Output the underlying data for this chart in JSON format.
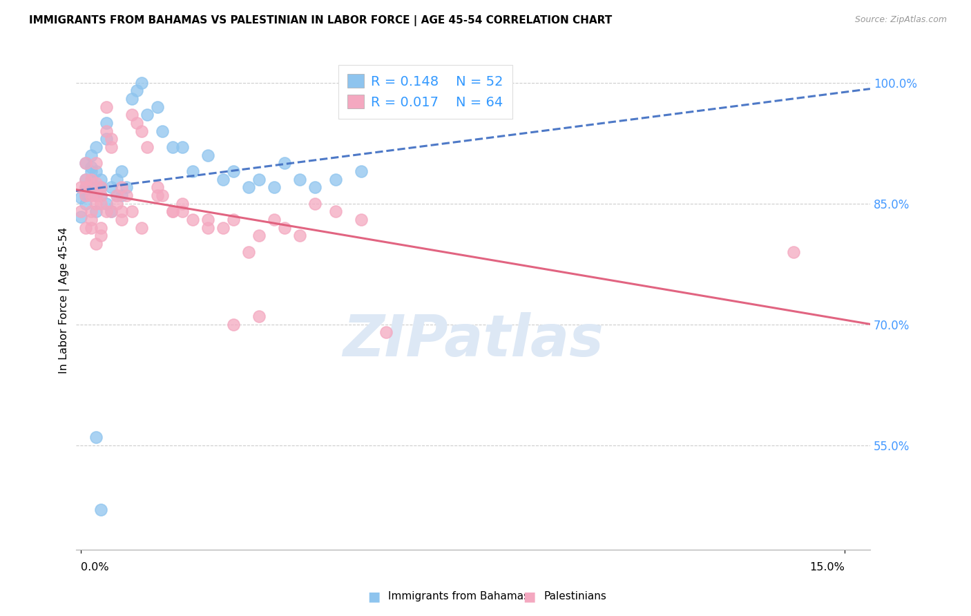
{
  "title": "IMMIGRANTS FROM BAHAMAS VS PALESTINIAN IN LABOR FORCE | AGE 45-54 CORRELATION CHART",
  "source": "Source: ZipAtlas.com",
  "ylabel": "In Labor Force | Age 45-54",
  "ylim": [
    0.42,
    1.04
  ],
  "xlim": [
    -0.001,
    0.155
  ],
  "yticks": [
    0.55,
    0.7,
    0.85,
    1.0
  ],
  "ytick_labels": [
    "55.0%",
    "70.0%",
    "85.0%",
    "100.0%"
  ],
  "r_bahamas": 0.148,
  "n_bahamas": 52,
  "r_palestinian": 0.017,
  "n_palestinian": 64,
  "color_bahamas": "#8EC4EE",
  "color_palestinian": "#F4A8C0",
  "line_color_bahamas": "#4472C4",
  "line_color_palestinian": "#E05C7A",
  "legend_label_bahamas": "Immigrants from Bahamas",
  "legend_label_palestinian": "Palestinians",
  "bahamas_x": [
    0.0,
    0.0,
    0.001,
    0.001,
    0.001,
    0.001,
    0.001,
    0.001,
    0.002,
    0.002,
    0.002,
    0.002,
    0.002,
    0.003,
    0.003,
    0.003,
    0.003,
    0.004,
    0.004,
    0.004,
    0.005,
    0.005,
    0.005,
    0.006,
    0.006,
    0.007,
    0.007,
    0.008,
    0.008,
    0.009,
    0.01,
    0.011,
    0.012,
    0.013,
    0.015,
    0.016,
    0.018,
    0.02,
    0.022,
    0.025,
    0.028,
    0.03,
    0.033,
    0.035,
    0.038,
    0.04,
    0.043,
    0.046,
    0.05,
    0.055,
    0.003,
    0.004
  ],
  "bahamas_y": [
    0.833,
    0.857,
    0.867,
    0.85,
    0.88,
    0.87,
    0.86,
    0.9,
    0.89,
    0.91,
    0.88,
    0.87,
    0.895,
    0.84,
    0.86,
    0.89,
    0.92,
    0.88,
    0.86,
    0.87,
    0.95,
    0.93,
    0.85,
    0.84,
    0.87,
    0.86,
    0.88,
    0.89,
    0.86,
    0.87,
    0.98,
    0.99,
    1.0,
    0.96,
    0.97,
    0.94,
    0.92,
    0.92,
    0.89,
    0.91,
    0.88,
    0.89,
    0.87,
    0.88,
    0.87,
    0.9,
    0.88,
    0.87,
    0.88,
    0.89,
    0.56,
    0.47
  ],
  "palestinian_x": [
    0.0,
    0.0,
    0.001,
    0.001,
    0.001,
    0.001,
    0.001,
    0.002,
    0.002,
    0.002,
    0.002,
    0.002,
    0.003,
    0.003,
    0.003,
    0.003,
    0.004,
    0.004,
    0.004,
    0.004,
    0.005,
    0.005,
    0.005,
    0.006,
    0.006,
    0.007,
    0.007,
    0.008,
    0.008,
    0.009,
    0.01,
    0.011,
    0.012,
    0.013,
    0.015,
    0.016,
    0.018,
    0.02,
    0.022,
    0.025,
    0.028,
    0.03,
    0.033,
    0.035,
    0.038,
    0.04,
    0.043,
    0.046,
    0.05,
    0.055,
    0.003,
    0.004,
    0.006,
    0.008,
    0.01,
    0.012,
    0.015,
    0.018,
    0.02,
    0.025,
    0.03,
    0.035,
    0.06,
    0.14
  ],
  "palestinian_y": [
    0.84,
    0.87,
    0.86,
    0.88,
    0.82,
    0.9,
    0.87,
    0.83,
    0.82,
    0.84,
    0.86,
    0.88,
    0.85,
    0.86,
    0.875,
    0.9,
    0.82,
    0.85,
    0.86,
    0.87,
    0.94,
    0.97,
    0.84,
    0.92,
    0.93,
    0.85,
    0.86,
    0.87,
    0.84,
    0.86,
    0.96,
    0.95,
    0.94,
    0.92,
    0.87,
    0.86,
    0.84,
    0.84,
    0.83,
    0.82,
    0.82,
    0.83,
    0.79,
    0.81,
    0.83,
    0.82,
    0.81,
    0.85,
    0.84,
    0.83,
    0.8,
    0.81,
    0.84,
    0.83,
    0.84,
    0.82,
    0.86,
    0.84,
    0.85,
    0.83,
    0.7,
    0.71,
    0.69,
    0.79
  ],
  "watermark_text": "ZIPatlas",
  "watermark_color": "#DDE8F5"
}
